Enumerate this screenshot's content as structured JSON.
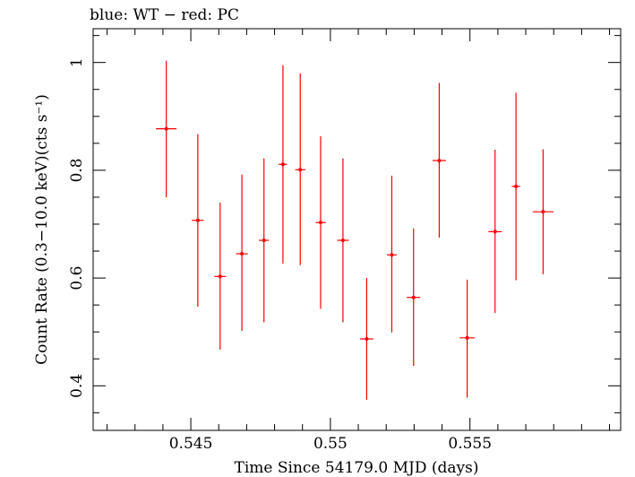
{
  "chart_data": {
    "type": "scatter",
    "title": "blue: WT − red: PC",
    "xlabel": "Time Since 54179.0 MJD (days)",
    "ylabel": "Count Rate (0.3−10.0 keV)(cts s⁻¹)",
    "xlim": [
      0.5415,
      0.5604
    ],
    "ylim": [
      0.3173,
      1.0627
    ],
    "x_ticks": [
      0.545,
      0.55,
      0.555
    ],
    "x_tick_labels": [
      "0.545",
      "0.55",
      "0.555"
    ],
    "y_ticks": [
      0.4,
      0.6,
      0.8,
      1.0
    ],
    "y_tick_labels": [
      "0.4",
      "0.6",
      "0.8",
      "1"
    ],
    "grid": false,
    "series": [
      {
        "color": "#ff0000",
        "points": [
          {
            "x": 0.54412,
            "xerr": 0.00037,
            "y": 0.877,
            "ylo": 0.75,
            "yhi": 1.003
          },
          {
            "x": 0.54525,
            "xerr": 0.00021,
            "y": 0.707,
            "ylo": 0.547,
            "yhi": 0.867
          },
          {
            "x": 0.54605,
            "xerr": 0.00021,
            "y": 0.603,
            "ylo": 0.467,
            "yhi": 0.74
          },
          {
            "x": 0.54683,
            "xerr": 0.00021,
            "y": 0.645,
            "ylo": 0.502,
            "yhi": 0.792
          },
          {
            "x": 0.54762,
            "xerr": 0.00018,
            "y": 0.67,
            "ylo": 0.518,
            "yhi": 0.822
          },
          {
            "x": 0.5483,
            "xerr": 0.00015,
            "y": 0.811,
            "ylo": 0.627,
            "yhi": 0.995
          },
          {
            "x": 0.54892,
            "xerr": 0.00018,
            "y": 0.801,
            "ylo": 0.624,
            "yhi": 0.98
          },
          {
            "x": 0.54965,
            "xerr": 0.00018,
            "y": 0.703,
            "ylo": 0.543,
            "yhi": 0.863
          },
          {
            "x": 0.55045,
            "xerr": 0.00021,
            "y": 0.67,
            "ylo": 0.518,
            "yhi": 0.822
          },
          {
            "x": 0.5513,
            "xerr": 0.00024,
            "y": 0.487,
            "ylo": 0.374,
            "yhi": 0.6
          },
          {
            "x": 0.5522,
            "xerr": 0.00018,
            "y": 0.643,
            "ylo": 0.499,
            "yhi": 0.79
          },
          {
            "x": 0.55298,
            "xerr": 0.00024,
            "y": 0.564,
            "ylo": 0.437,
            "yhi": 0.692
          },
          {
            "x": 0.5539,
            "xerr": 0.00024,
            "y": 0.818,
            "ylo": 0.675,
            "yhi": 0.962
          },
          {
            "x": 0.5549,
            "xerr": 0.00027,
            "y": 0.489,
            "ylo": 0.378,
            "yhi": 0.597
          },
          {
            "x": 0.5559,
            "xerr": 0.00024,
            "y": 0.686,
            "ylo": 0.535,
            "yhi": 0.838
          },
          {
            "x": 0.55665,
            "xerr": 0.00015,
            "y": 0.77,
            "ylo": 0.596,
            "yhi": 0.944
          },
          {
            "x": 0.55762,
            "xerr": 0.00037,
            "y": 0.723,
            "ylo": 0.607,
            "yhi": 0.839
          }
        ]
      }
    ]
  }
}
